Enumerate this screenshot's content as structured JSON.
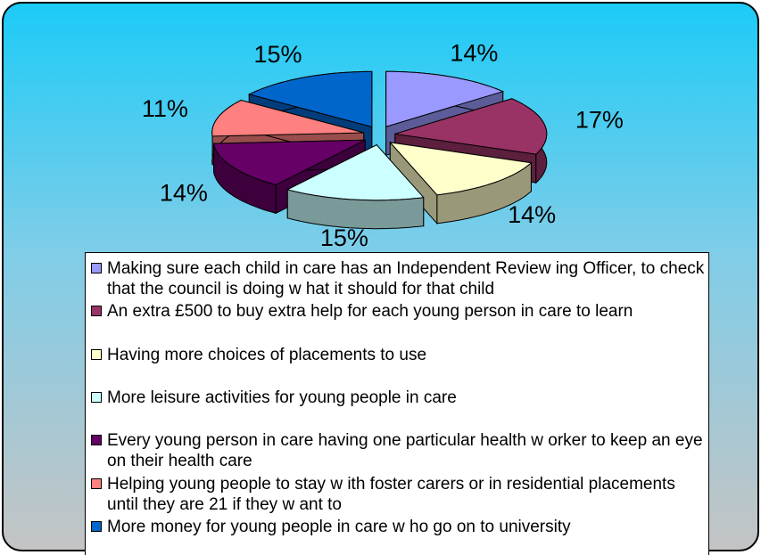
{
  "chart_data": {
    "type": "pie3d",
    "categories": [
      "Making sure each child in care has an Independent Review ing Officer, to check that the council is doing w hat it should for that child",
      "An extra £500 to buy extra help for each young person  in care to learn",
      "Having more choices of placements to use",
      "More leisure activities for young people in care",
      "Every young person in care having one particular health w orker to keep an eye on their health care",
      "Helping young people to stay w ith foster carers or in residential placements until they are 21 if they w ant to",
      "More money for young people in care w ho go on to university"
    ],
    "values": [
      14,
      17,
      14,
      15,
      14,
      11,
      15
    ],
    "value_labels": [
      "14%",
      "17%",
      "14%",
      "15%",
      "14%",
      "11%",
      "15%"
    ],
    "colors": [
      "#9999ff",
      "#993366",
      "#ffffcc",
      "#ccffff",
      "#660066",
      "#ff8080",
      "#0066cc"
    ],
    "legend": "bottom"
  }
}
